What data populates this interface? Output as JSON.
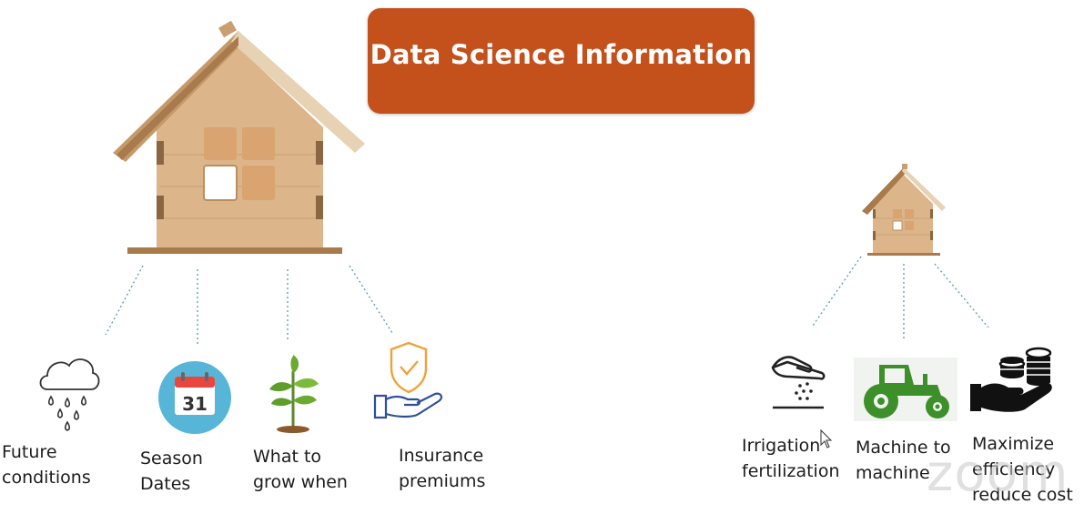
{
  "title": "Data Science Information",
  "left_items": [
    {
      "label": "Future\nconditions",
      "icon": "rain-cloud-icon"
    },
    {
      "label": "Season\nDates",
      "icon": "calendar-icon",
      "calendar_day": "31"
    },
    {
      "label": "What to\ngrow when",
      "icon": "seedling-icon"
    },
    {
      "label": "Insurance\npremiums",
      "icon": "shield-hand-icon"
    }
  ],
  "right_items": [
    {
      "label": "Irrigation\nfertilization",
      "icon": "hand-sprinkle-icon"
    },
    {
      "label": "Machine to\nmachine",
      "icon": "tractor-icon"
    },
    {
      "label": "Maximize\nefficiency\nreduce cost",
      "icon": "coins-hand-icon"
    }
  ],
  "watermark": "zoom",
  "colors": {
    "title_bg": "#c4501c",
    "title_text": "#ffffff",
    "connector": "#5a9aa8",
    "wood": "#d9b48a",
    "wood_dark": "#b98d5f",
    "tractor_green": "#3d8f2a",
    "shield_orange": "#f0a23a",
    "hand_blue": "#2f4f9a"
  }
}
